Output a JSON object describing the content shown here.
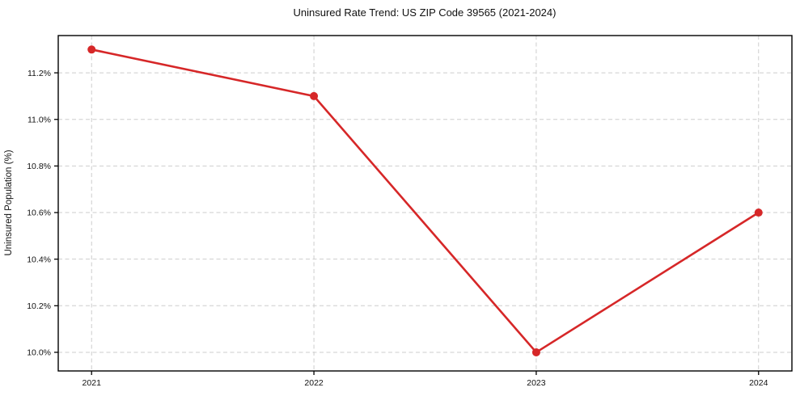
{
  "chart_data": {
    "type": "line",
    "title": "Uninsured Rate Trend: US ZIP Code 39565 (2021-2024)",
    "xlabel": "",
    "ylabel": "Uninsured Population (%)",
    "x": [
      2021,
      2022,
      2023,
      2024
    ],
    "x_tick_labels": [
      "2021",
      "2022",
      "2023",
      "2024"
    ],
    "series": [
      {
        "name": "uninsured-rate",
        "values": [
          11.3,
          11.1,
          10.0,
          10.6
        ]
      }
    ],
    "y_ticks": [
      10.0,
      10.2,
      10.4,
      10.6,
      10.8,
      11.0,
      11.2
    ],
    "y_tick_labels": [
      "10.0%",
      "10.2%",
      "10.4%",
      "10.6%",
      "10.8%",
      "11.0%",
      "11.2%"
    ],
    "xlim": [
      2020.85,
      2024.15
    ],
    "ylim": [
      9.92,
      11.36
    ],
    "grid": true,
    "legend": "none",
    "colors": {
      "line": "#d62728",
      "marker": "#d62728",
      "grid": "#cdcdcd",
      "axis": "#000000",
      "text": "#111111",
      "background": "#ffffff"
    }
  }
}
